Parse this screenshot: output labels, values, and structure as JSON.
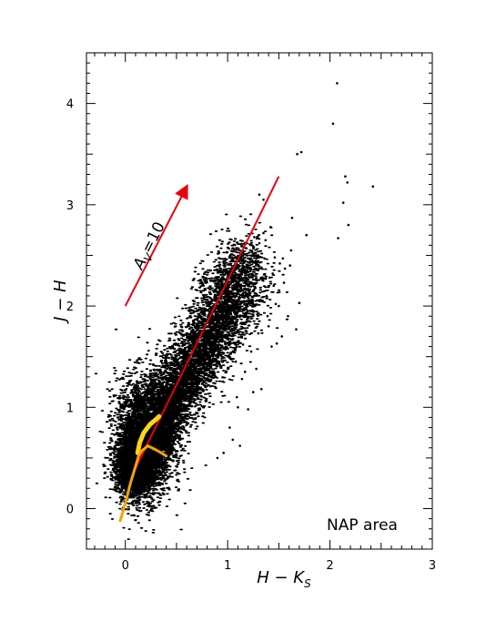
{
  "chart_data": {
    "type": "scatter",
    "xlabel": {
      "main": "H − K",
      "sub": "S"
    },
    "ylabel": "J − H",
    "xlim": [
      -0.38,
      3.0
    ],
    "ylim": [
      -0.4,
      4.5
    ],
    "x_ticks": [
      0,
      1,
      2,
      3
    ],
    "y_ticks": [
      0,
      1,
      2,
      3,
      4
    ],
    "region_label": "NAP area",
    "extinction_arrow": {
      "label_main": "A",
      "label_sub": "V",
      "label_eq": "=10",
      "from": [
        0.0,
        2.0
      ],
      "to": [
        0.6,
        3.18
      ],
      "color": "#e8000b"
    },
    "reddening_line": {
      "from": [
        0.1,
        0.4
      ],
      "to": [
        1.5,
        3.28
      ],
      "color": "#e8000b"
    },
    "dwarf_locus": {
      "color": "#ffd21a",
      "points": [
        [
          0.12,
          0.55
        ],
        [
          0.14,
          0.65
        ],
        [
          0.18,
          0.75
        ],
        [
          0.24,
          0.83
        ],
        [
          0.3,
          0.88
        ],
        [
          0.33,
          0.91
        ]
      ]
    },
    "giant_locus": {
      "color": "#f5a400",
      "points": [
        [
          -0.05,
          -0.12
        ],
        [
          0.0,
          0.05
        ],
        [
          0.05,
          0.25
        ],
        [
          0.1,
          0.42
        ],
        [
          0.13,
          0.52
        ],
        [
          0.16,
          0.57
        ],
        [
          0.22,
          0.62
        ],
        [
          0.3,
          0.58
        ],
        [
          0.35,
          0.55
        ],
        [
          0.4,
          0.52
        ]
      ]
    },
    "outliers": [
      [
        2.07,
        4.2
      ],
      [
        2.03,
        3.8
      ],
      [
        1.72,
        3.52
      ],
      [
        2.15,
        3.28
      ],
      [
        2.17,
        3.22
      ],
      [
        2.42,
        3.18
      ],
      [
        2.13,
        3.02
      ],
      [
        2.18,
        2.8
      ],
      [
        2.08,
        2.67
      ],
      [
        1.77,
        2.7
      ],
      [
        1.63,
        2.87
      ],
      [
        1.54,
        2.47
      ],
      [
        1.51,
        2.42
      ],
      [
        1.56,
        2.37
      ],
      [
        1.36,
        2.47
      ],
      [
        1.46,
        2.48
      ],
      [
        1.55,
        2.23
      ],
      [
        1.67,
        1.77
      ],
      [
        1.44,
        2.32
      ],
      [
        1.41,
        2.28
      ],
      [
        1.45,
        2.2
      ],
      [
        1.38,
        2.1
      ],
      [
        1.5,
        2.0
      ],
      [
        1.4,
        1.8
      ],
      [
        1.43,
        1.6
      ],
      [
        1.28,
        1.38
      ],
      [
        1.23,
        1.55
      ],
      [
        1.14,
        1.28
      ],
      [
        1.2,
        0.98
      ],
      [
        1.1,
        1.0
      ],
      [
        1.12,
        0.62
      ],
      [
        1.02,
        0.8
      ],
      [
        1.05,
        0.68
      ],
      [
        1.3,
        2.5
      ],
      [
        1.61,
        2.4
      ],
      [
        1.59,
        1.9
      ],
      [
        1.7,
        2.03
      ],
      [
        1.48,
        1.63
      ],
      [
        0.01,
        1.18
      ],
      [
        -0.07,
        0.5
      ],
      [
        -0.05,
        0.35
      ],
      [
        -0.02,
        0.25
      ],
      [
        1.53,
        1.7
      ],
      [
        1.33,
        1.18
      ],
      [
        0.9,
        0.5
      ],
      [
        1.25,
        2.02
      ],
      [
        1.62,
        2.55
      ],
      [
        1.68,
        3.5
      ],
      [
        1.37,
        2.65
      ],
      [
        1.39,
        1.9
      ],
      [
        1.3,
        1.73
      ],
      [
        1.25,
        1.15
      ],
      [
        1.08,
        1.45
      ],
      [
        0.96,
        0.55
      ],
      [
        1.18,
        1.75
      ],
      [
        1.33,
        2.38
      ],
      [
        1.27,
        2.18
      ],
      [
        1.22,
        2.55
      ],
      [
        1.19,
        2.35
      ],
      [
        1.31,
        2.62
      ],
      [
        1.42,
        2.78
      ],
      [
        1.35,
        2.72
      ],
      [
        1.26,
        2.68
      ],
      [
        1.35,
        3.05
      ],
      [
        1.31,
        3.1
      ],
      [
        1.16,
        2.05
      ],
      [
        1.21,
        1.85
      ],
      [
        1.05,
        1.55
      ],
      [
        1.17,
        1.35
      ],
      [
        1.09,
        1.1
      ],
      [
        1.15,
        1.62
      ],
      [
        1.47,
        2.02
      ]
    ]
  }
}
